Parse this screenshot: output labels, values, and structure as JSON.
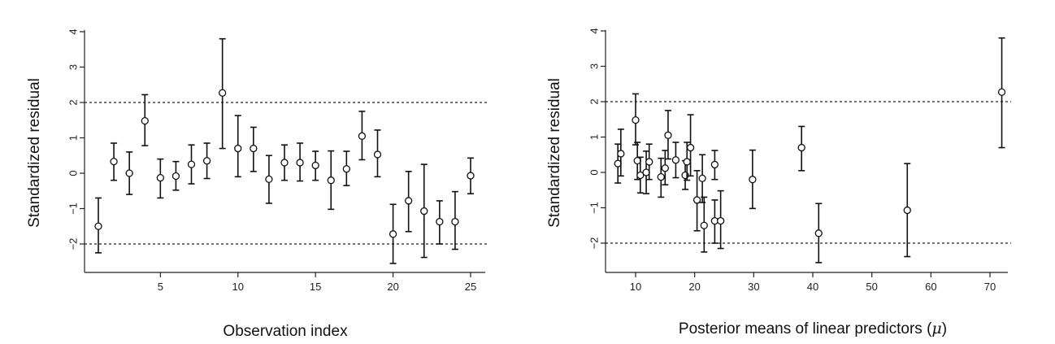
{
  "chart_data": [
    {
      "type": "scatter",
      "xlabel": "Observation index",
      "ylabel": "Standardized residual",
      "xlim": [
        0,
        26
      ],
      "ylim": [
        -2.75,
        4.0
      ],
      "xticks": [
        5,
        10,
        15,
        20,
        25
      ],
      "yticks": [
        -2,
        -1,
        0,
        1,
        2,
        3,
        4
      ],
      "reference_lines_y": [
        2,
        -2
      ],
      "points": [
        {
          "x": 1,
          "y": -1.5,
          "lo": -2.25,
          "hi": -0.7
        },
        {
          "x": 2,
          "y": 0.33,
          "lo": -0.2,
          "hi": 0.85
        },
        {
          "x": 3,
          "y": 0.0,
          "lo": -0.6,
          "hi": 0.6
        },
        {
          "x": 4,
          "y": 1.48,
          "lo": 0.78,
          "hi": 2.22
        },
        {
          "x": 5,
          "y": -0.13,
          "lo": -0.7,
          "hi": 0.4
        },
        {
          "x": 6,
          "y": -0.08,
          "lo": -0.48,
          "hi": 0.33
        },
        {
          "x": 7,
          "y": 0.25,
          "lo": -0.3,
          "hi": 0.8
        },
        {
          "x": 8,
          "y": 0.35,
          "lo": -0.15,
          "hi": 0.85
        },
        {
          "x": 9,
          "y": 2.27,
          "lo": 0.7,
          "hi": 3.8
        },
        {
          "x": 10,
          "y": 0.7,
          "lo": -0.1,
          "hi": 1.63
        },
        {
          "x": 11,
          "y": 0.7,
          "lo": 0.05,
          "hi": 1.3
        },
        {
          "x": 12,
          "y": -0.17,
          "lo": -0.85,
          "hi": 0.5
        },
        {
          "x": 13,
          "y": 0.3,
          "lo": -0.2,
          "hi": 0.8
        },
        {
          "x": 14,
          "y": 0.3,
          "lo": -0.22,
          "hi": 0.85
        },
        {
          "x": 15,
          "y": 0.22,
          "lo": -0.2,
          "hi": 0.62
        },
        {
          "x": 16,
          "y": -0.2,
          "lo": -1.02,
          "hi": 0.63
        },
        {
          "x": 17,
          "y": 0.12,
          "lo": -0.35,
          "hi": 0.62
        },
        {
          "x": 18,
          "y": 1.05,
          "lo": 0.38,
          "hi": 1.75
        },
        {
          "x": 19,
          "y": 0.53,
          "lo": -0.1,
          "hi": 1.22
        },
        {
          "x": 20,
          "y": -1.72,
          "lo": -2.55,
          "hi": -0.88
        },
        {
          "x": 21,
          "y": -0.78,
          "lo": -1.65,
          "hi": 0.05
        },
        {
          "x": 22,
          "y": -1.07,
          "lo": -2.38,
          "hi": 0.25
        },
        {
          "x": 23,
          "y": -1.37,
          "lo": -2.0,
          "hi": -0.78
        },
        {
          "x": 24,
          "y": -1.37,
          "lo": -2.15,
          "hi": -0.52
        },
        {
          "x": 25,
          "y": -0.07,
          "lo": -0.58,
          "hi": 0.43
        }
      ]
    },
    {
      "type": "scatter",
      "xlabel": "Posterior means of linear predictors (",
      "xlabel_symbol": "μ",
      "xlabel_end": ")",
      "ylabel": "Standardized residual",
      "xlim": [
        5,
        75
      ],
      "ylim": [
        -2.75,
        4.0
      ],
      "xticks": [
        10,
        20,
        30,
        40,
        50,
        60,
        70
      ],
      "yticks": [
        -2,
        -1,
        0,
        1,
        2,
        3,
        4
      ],
      "reference_lines_y": [
        2,
        -2
      ],
      "points": [
        {
          "x": 7.0,
          "y": 0.25,
          "lo": -0.3,
          "hi": 0.8
        },
        {
          "x": 7.5,
          "y": 0.53,
          "lo": -0.1,
          "hi": 1.22
        },
        {
          "x": 10.0,
          "y": 1.48,
          "lo": 0.78,
          "hi": 2.22
        },
        {
          "x": 10.3,
          "y": 0.33,
          "lo": -0.2,
          "hi": 0.85
        },
        {
          "x": 10.8,
          "y": -0.08,
          "lo": -0.58,
          "hi": 0.43
        },
        {
          "x": 11.8,
          "y": 0.0,
          "lo": -0.6,
          "hi": 0.6
        },
        {
          "x": 12.3,
          "y": 0.3,
          "lo": -0.2,
          "hi": 0.8
        },
        {
          "x": 14.3,
          "y": -0.13,
          "lo": -0.7,
          "hi": 0.4
        },
        {
          "x": 15.0,
          "y": 0.12,
          "lo": -0.35,
          "hi": 0.62
        },
        {
          "x": 15.5,
          "y": 1.05,
          "lo": 0.38,
          "hi": 1.75
        },
        {
          "x": 16.8,
          "y": 0.35,
          "lo": -0.15,
          "hi": 0.85
        },
        {
          "x": 18.4,
          "y": -0.08,
          "lo": -0.48,
          "hi": 0.33
        },
        {
          "x": 18.7,
          "y": 0.3,
          "lo": -0.22,
          "hi": 0.85
        },
        {
          "x": 19.3,
          "y": 0.7,
          "lo": -0.1,
          "hi": 1.63
        },
        {
          "x": 20.4,
          "y": -0.78,
          "lo": -1.65,
          "hi": 0.05
        },
        {
          "x": 21.3,
          "y": -0.17,
          "lo": -0.85,
          "hi": 0.5
        },
        {
          "x": 21.6,
          "y": -1.5,
          "lo": -2.25,
          "hi": -0.7
        },
        {
          "x": 23.4,
          "y": -1.37,
          "lo": -2.0,
          "hi": -0.78
        },
        {
          "x": 23.4,
          "y": 0.22,
          "lo": -0.2,
          "hi": 0.62
        },
        {
          "x": 24.4,
          "y": -1.37,
          "lo": -2.15,
          "hi": -0.52
        },
        {
          "x": 29.8,
          "y": -0.2,
          "lo": -1.02,
          "hi": 0.63
        },
        {
          "x": 38.1,
          "y": 0.7,
          "lo": 0.05,
          "hi": 1.3
        },
        {
          "x": 41.0,
          "y": -1.72,
          "lo": -2.55,
          "hi": -0.88
        },
        {
          "x": 56.0,
          "y": -1.07,
          "lo": -2.38,
          "hi": 0.25
        },
        {
          "x": 72.0,
          "y": 2.27,
          "lo": 0.7,
          "hi": 3.8
        }
      ]
    }
  ]
}
